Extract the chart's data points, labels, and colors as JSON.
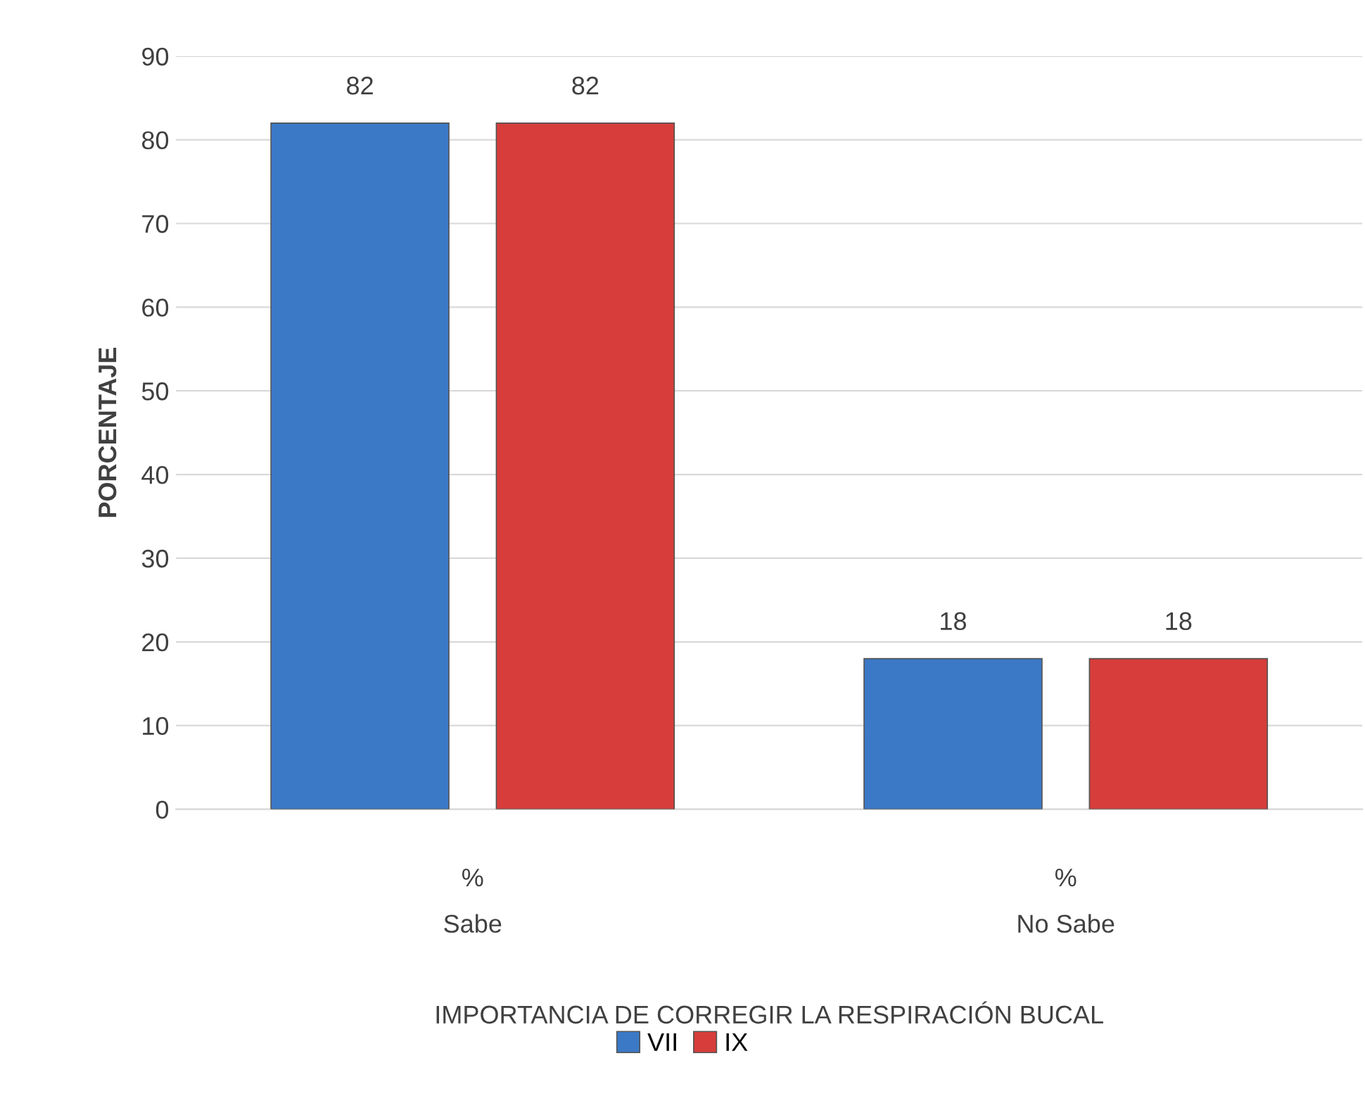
{
  "chart_data": {
    "type": "bar",
    "categories": [
      "%",
      "%"
    ],
    "series": [
      {
        "name": "VII",
        "color": "#3b78c6",
        "values": [
          82,
          18
        ]
      },
      {
        "name": "IX",
        "color": "#d63d3b",
        "values": [
          82,
          18
        ]
      }
    ],
    "ylabel": "PORCENTAJE",
    "xlabel": "IMPORTANCIA DE CORREGIR LA RESPIRACIÓN BUCAL",
    "annotations": [
      "Sabe",
      "No Sabe"
    ],
    "ylim": [
      0,
      90
    ],
    "yticks": [
      0,
      10,
      20,
      30,
      40,
      50,
      60,
      70,
      80,
      90
    ],
    "grid": "y",
    "legend": "bottom",
    "data_labels": true
  }
}
